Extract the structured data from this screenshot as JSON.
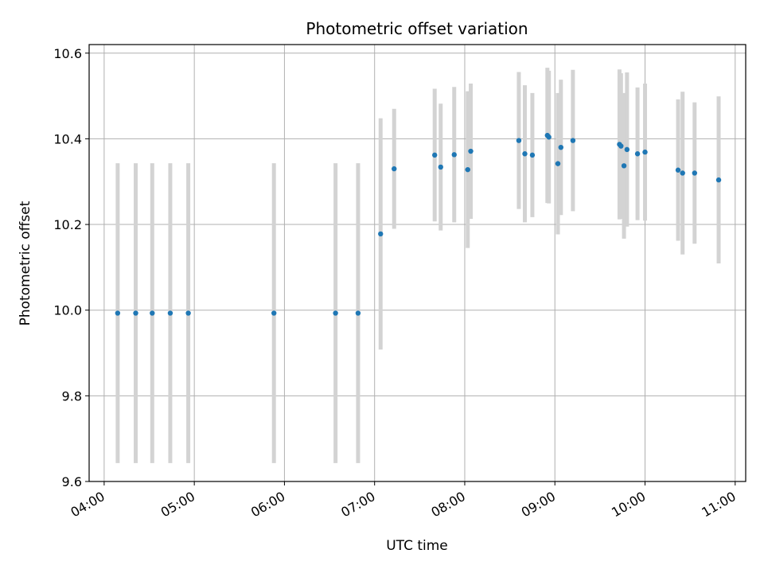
{
  "chart_data": {
    "type": "scatter",
    "title": "Photometric offset variation",
    "xlabel": "UTC time",
    "ylabel": "Photometric offset",
    "x_unit": "hours UTC",
    "xlim": [
      "03:50",
      "11:07"
    ],
    "ylim": [
      9.6,
      10.62
    ],
    "x_ticks": [
      "04:00",
      "05:00",
      "06:00",
      "07:00",
      "08:00",
      "09:00",
      "10:00",
      "11:00"
    ],
    "y_ticks": [
      "9.6",
      "9.8",
      "10.0",
      "10.2",
      "10.4",
      "10.6"
    ],
    "grid": true,
    "x_tick_rotation": "30 degrees",
    "marker_color": "#1f77b4",
    "errorbar_color": "#d3d3d3",
    "points": [
      {
        "x": "04:09",
        "y": 9.993,
        "err": 0.35
      },
      {
        "x": "04:21",
        "y": 9.993,
        "err": 0.35
      },
      {
        "x": "04:32",
        "y": 9.993,
        "err": 0.35
      },
      {
        "x": "04:44",
        "y": 9.993,
        "err": 0.35
      },
      {
        "x": "04:56",
        "y": 9.993,
        "err": 0.35
      },
      {
        "x": "05:53",
        "y": 9.993,
        "err": 0.35
      },
      {
        "x": "06:34",
        "y": 9.993,
        "err": 0.35
      },
      {
        "x": "06:49",
        "y": 9.993,
        "err": 0.35
      },
      {
        "x": "07:04",
        "y": 10.178,
        "err": 0.27
      },
      {
        "x": "07:13",
        "y": 10.33,
        "err": 0.14
      },
      {
        "x": "07:40",
        "y": 10.362,
        "err": 0.155
      },
      {
        "x": "07:44",
        "y": 10.334,
        "err": 0.148
      },
      {
        "x": "07:53",
        "y": 10.363,
        "err": 0.158
      },
      {
        "x": "08:02",
        "y": 10.328,
        "err": 0.183
      },
      {
        "x": "08:04",
        "y": 10.371,
        "err": 0.158
      },
      {
        "x": "08:36",
        "y": 10.396,
        "err": 0.16
      },
      {
        "x": "08:40",
        "y": 10.365,
        "err": 0.16
      },
      {
        "x": "08:45",
        "y": 10.362,
        "err": 0.145
      },
      {
        "x": "08:55",
        "y": 10.408,
        "err": 0.158
      },
      {
        "x": "08:56",
        "y": 10.404,
        "err": 0.155
      },
      {
        "x": "09:02",
        "y": 10.342,
        "err": 0.165
      },
      {
        "x": "09:04",
        "y": 10.38,
        "err": 0.158
      },
      {
        "x": "09:12",
        "y": 10.396,
        "err": 0.165
      },
      {
        "x": "09:43",
        "y": 10.387,
        "err": 0.175
      },
      {
        "x": "09:44",
        "y": 10.383,
        "err": 0.17
      },
      {
        "x": "09:46",
        "y": 10.337,
        "err": 0.17
      },
      {
        "x": "09:48",
        "y": 10.375,
        "err": 0.18
      },
      {
        "x": "09:55",
        "y": 10.365,
        "err": 0.155
      },
      {
        "x": "10:00",
        "y": 10.369,
        "err": 0.16
      },
      {
        "x": "10:22",
        "y": 10.327,
        "err": 0.165
      },
      {
        "x": "10:25",
        "y": 10.32,
        "err": 0.19
      },
      {
        "x": "10:33",
        "y": 10.32,
        "err": 0.165
      },
      {
        "x": "10:49",
        "y": 10.304,
        "err": 0.195
      }
    ]
  }
}
